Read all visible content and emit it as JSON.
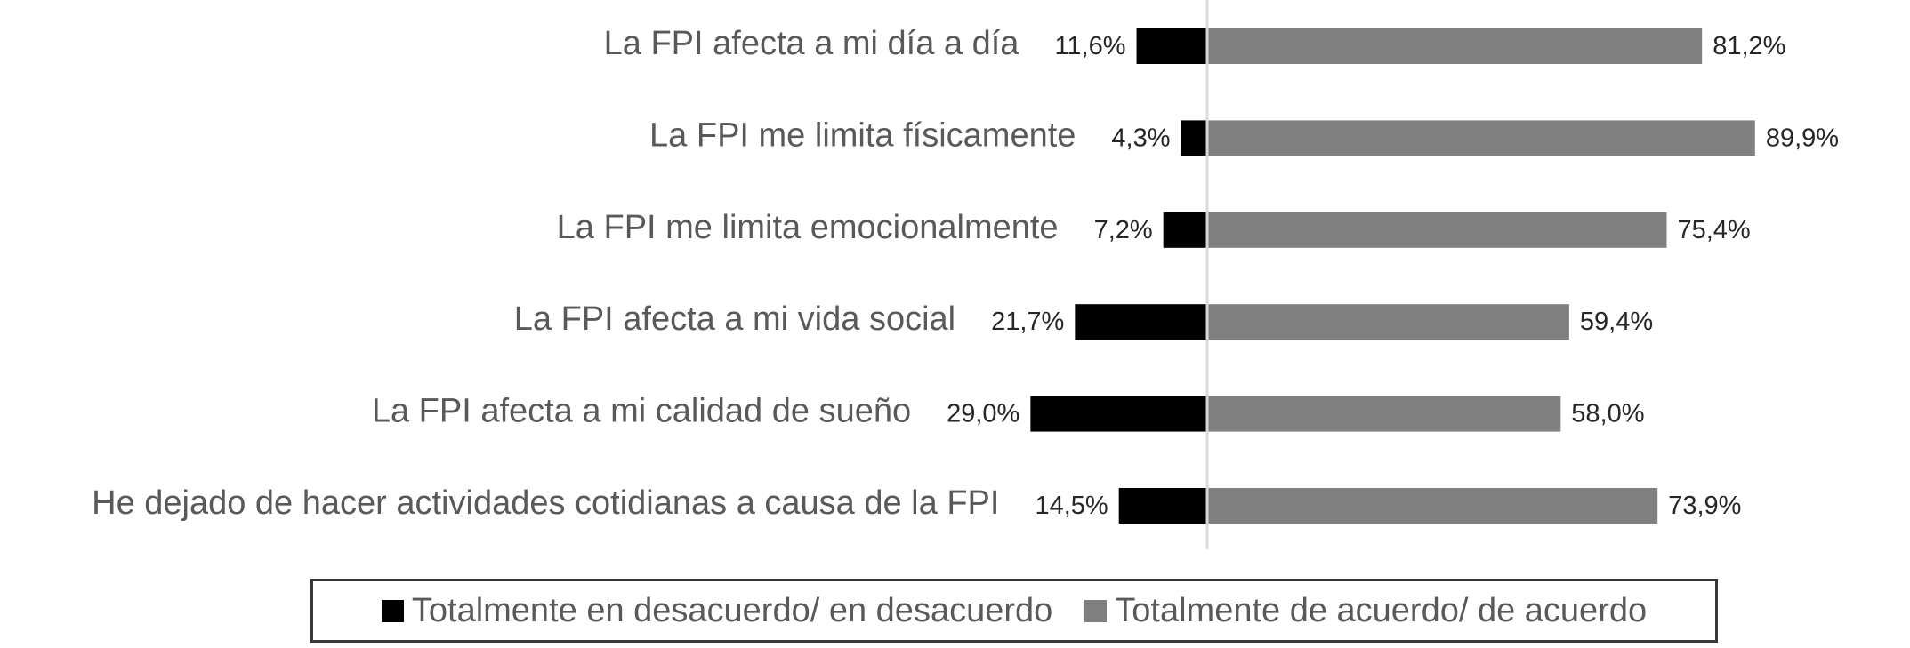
{
  "chart_data": {
    "type": "bar",
    "orientation": "horizontal-diverging",
    "categories": [
      "La FPI afecta a mi día a día",
      "La FPI me limita físicamente",
      "La FPI me limita emocionalmente",
      "La FPI afecta a mi vida social",
      "La FPI afecta a mi calidad de sueño",
      "He dejado de hacer actividades cotidianas a causa de la FPI"
    ],
    "series": [
      {
        "name": "Totalmente en desacuerdo/ en desacuerdo",
        "color": "#000000",
        "values": [
          11.6,
          4.3,
          7.2,
          21.7,
          29.0,
          14.5
        ],
        "labels": [
          "11,6%",
          "4,3%",
          "7,2%",
          "21,7%",
          "29,0%",
          "14,5%"
        ]
      },
      {
        "name": "Totalmente de acuerdo/ de acuerdo",
        "color": "#808080",
        "values": [
          81.2,
          89.9,
          75.4,
          59.4,
          58.0,
          73.9
        ],
        "labels": [
          "81,2%",
          "89,9%",
          "75,4%",
          "59,4%",
          "58,0%",
          "73,9%"
        ]
      }
    ],
    "unit": "%",
    "grid": false,
    "legend_position": "bottom"
  }
}
